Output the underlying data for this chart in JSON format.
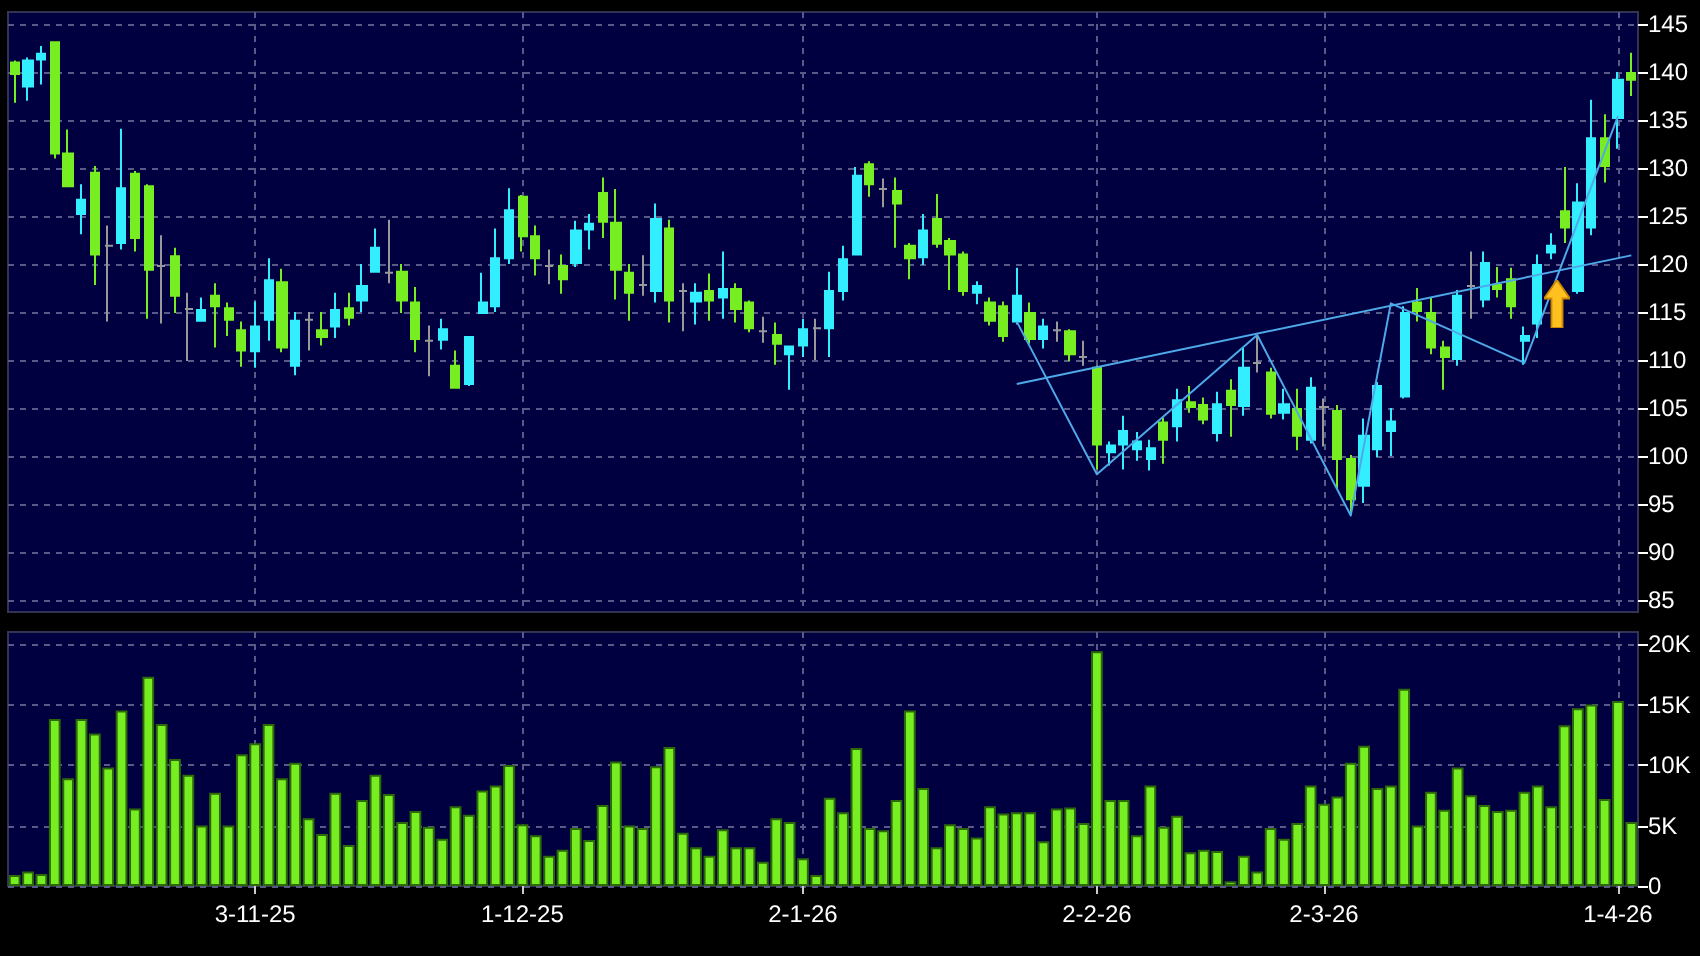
{
  "chart_data": [
    {
      "type": "candlestick",
      "categories": [
        null,
        null,
        null,
        null,
        null,
        null,
        null,
        null,
        null,
        null,
        null,
        null,
        null,
        null,
        null,
        null,
        null,
        null,
        null,
        null,
        null,
        null,
        null,
        null,
        null,
        null,
        null,
        null,
        null,
        null,
        null,
        null,
        null,
        null,
        null,
        null,
        null,
        null,
        null,
        null,
        null,
        null,
        null,
        null,
        null,
        null,
        null,
        null,
        null,
        null,
        null,
        null,
        null,
        null,
        null,
        null,
        null,
        null,
        null,
        null,
        null,
        null,
        null,
        null,
        null,
        null,
        null,
        null,
        null,
        null,
        null,
        null,
        null,
        null,
        null,
        null,
        null,
        null,
        null,
        null,
        null,
        null,
        null,
        null,
        null,
        null,
        null,
        null,
        null,
        null,
        null,
        null,
        null,
        null,
        null,
        null,
        null,
        null,
        null,
        null,
        null,
        null,
        null,
        null,
        null,
        null,
        null,
        null,
        null,
        null,
        null,
        null,
        null,
        null,
        null,
        null,
        null,
        null,
        null,
        null,
        null,
        null
      ],
      "ohlc": [
        [
          141.0,
          141.2,
          136.8,
          139.8
        ],
        [
          138.5,
          141.5,
          137.0,
          141.2
        ],
        [
          141.3,
          142.7,
          138.7,
          141.9
        ],
        [
          143.1,
          143.1,
          131.0,
          131.5
        ],
        [
          131.5,
          134.0,
          128.0,
          128.1
        ],
        [
          125.2,
          128.3,
          123.1,
          126.7
        ],
        [
          129.5,
          130.2,
          117.8,
          121.0
        ],
        [
          121.9,
          124.0,
          114.0,
          121.9
        ],
        [
          122.2,
          134.1,
          121.5,
          127.9
        ],
        [
          129.4,
          129.7,
          121.3,
          122.7
        ],
        [
          128.1,
          128.3,
          114.3,
          119.4
        ],
        [
          119.8,
          123.0,
          113.8,
          119.8
        ],
        [
          120.8,
          121.7,
          114.9,
          116.7
        ],
        [
          115.3,
          117.0,
          109.9,
          115.3
        ],
        [
          114.1,
          116.5,
          114.0,
          115.2
        ],
        [
          116.7,
          118.0,
          111.3,
          115.6
        ],
        [
          115.4,
          116.0,
          112.5,
          114.2
        ],
        [
          113.1,
          114.0,
          109.3,
          111.0
        ],
        [
          110.9,
          116.1,
          109.2,
          113.5
        ],
        [
          114.2,
          120.6,
          112.0,
          118.3
        ],
        [
          118.1,
          119.5,
          110.8,
          111.3
        ],
        [
          109.4,
          115.0,
          108.4,
          114.1
        ],
        [
          114.2,
          115.0,
          111.0,
          114.2
        ],
        [
          113.1,
          115.0,
          111.5,
          112.4
        ],
        [
          113.5,
          117.0,
          112.3,
          115.2
        ],
        [
          115.4,
          117.0,
          113.6,
          114.4
        ],
        [
          116.2,
          120.0,
          115.0,
          117.7
        ],
        [
          119.2,
          123.7,
          119.2,
          121.7
        ],
        [
          119.1,
          124.6,
          118.0,
          119.1
        ],
        [
          119.2,
          120.0,
          114.9,
          116.2
        ],
        [
          116.0,
          117.6,
          110.8,
          112.2
        ],
        [
          112.0,
          113.6,
          108.3,
          112.0
        ],
        [
          112.1,
          114.3,
          111.1,
          113.2
        ],
        [
          109.4,
          111.0,
          107.0,
          107.1
        ],
        [
          107.5,
          112.5,
          107.3,
          112.4
        ],
        [
          114.9,
          119.1,
          114.9,
          116.0
        ],
        [
          115.6,
          123.7,
          115.0,
          120.6
        ],
        [
          120.6,
          127.9,
          120.0,
          125.6
        ],
        [
          127.0,
          127.2,
          121.3,
          122.9
        ],
        [
          122.9,
          124.0,
          118.8,
          120.6
        ],
        [
          119.8,
          121.5,
          117.9,
          119.8
        ],
        [
          119.8,
          121.0,
          116.9,
          118.4
        ],
        [
          120.1,
          124.5,
          119.7,
          123.5
        ],
        [
          123.6,
          125.2,
          121.5,
          124.2
        ],
        [
          127.4,
          129.0,
          122.7,
          124.4
        ],
        [
          124.3,
          127.8,
          116.3,
          119.4
        ],
        [
          119.1,
          120.0,
          114.1,
          117.0
        ],
        [
          117.8,
          120.9,
          116.7,
          117.8
        ],
        [
          117.2,
          126.3,
          116.0,
          124.7
        ],
        [
          123.7,
          124.6,
          113.9,
          116.2
        ],
        [
          117.2,
          118.0,
          113.0,
          117.2
        ],
        [
          116.1,
          118.0,
          113.7,
          117.0
        ],
        [
          117.2,
          119.0,
          114.1,
          116.2
        ],
        [
          116.5,
          121.3,
          114.3,
          117.4
        ],
        [
          117.4,
          118.0,
          113.9,
          115.3
        ],
        [
          116.0,
          116.2,
          112.9,
          113.3
        ],
        [
          113.0,
          114.5,
          111.8,
          113.0
        ],
        [
          112.6,
          113.9,
          109.5,
          111.7
        ],
        [
          110.6,
          111.5,
          106.9,
          111.4
        ],
        [
          111.5,
          114.3,
          110.3,
          113.2
        ],
        [
          113.3,
          114.3,
          110.0,
          113.3
        ],
        [
          113.3,
          119.2,
          110.3,
          117.2
        ],
        [
          117.2,
          121.9,
          116.2,
          120.5
        ],
        [
          121.0,
          130.1,
          120.9,
          129.2
        ],
        [
          130.4,
          130.7,
          127.0,
          128.3
        ],
        [
          127.8,
          128.9,
          125.9,
          127.8
        ],
        [
          127.6,
          129.0,
          121.7,
          126.3
        ],
        [
          121.9,
          122.2,
          118.4,
          120.6
        ],
        [
          120.7,
          125.2,
          119.9,
          123.5
        ],
        [
          124.7,
          127.3,
          121.7,
          122.1
        ],
        [
          122.4,
          122.7,
          117.3,
          121.0
        ],
        [
          121.0,
          121.3,
          116.7,
          117.2
        ],
        [
          117.0,
          118.2,
          115.8,
          117.7
        ],
        [
          116.0,
          116.5,
          113.6,
          114.1
        ],
        [
          115.6,
          116.1,
          111.9,
          112.5
        ],
        [
          114.0,
          119.6,
          113.7,
          116.7
        ],
        [
          114.9,
          116.0,
          111.7,
          112.2
        ],
        [
          112.2,
          114.3,
          111.2,
          113.5
        ],
        [
          113.1,
          114.0,
          111.9,
          113.1
        ],
        [
          113.0,
          113.2,
          109.9,
          110.6
        ],
        [
          110.3,
          112.0,
          109.4,
          110.3
        ],
        [
          109.2,
          109.4,
          98.6,
          101.2
        ],
        [
          100.4,
          101.5,
          99.0,
          101.1
        ],
        [
          101.2,
          104.2,
          98.6,
          102.6
        ],
        [
          100.7,
          102.5,
          99.5,
          101.5
        ],
        [
          99.7,
          101.7,
          98.5,
          100.8
        ],
        [
          103.5,
          104.0,
          99.2,
          101.7
        ],
        [
          103.1,
          107.0,
          101.5,
          105.8
        ],
        [
          105.6,
          107.3,
          104.5,
          105.1
        ],
        [
          105.3,
          106.1,
          103.3,
          103.8
        ],
        [
          102.4,
          106.7,
          101.5,
          105.4
        ],
        [
          106.8,
          108.0,
          102.0,
          105.3
        ],
        [
          105.2,
          111.3,
          104.2,
          109.2
        ],
        [
          109.7,
          112.6,
          108.7,
          109.7
        ],
        [
          108.7,
          109.2,
          103.9,
          104.4
        ],
        [
          104.5,
          107.0,
          103.8,
          105.4
        ],
        [
          104.9,
          107.0,
          100.6,
          102.1
        ],
        [
          101.7,
          108.2,
          101.3,
          107.1
        ],
        [
          105.1,
          106.0,
          101.0,
          105.1
        ],
        [
          104.7,
          105.3,
          96.5,
          99.7
        ],
        [
          99.7,
          100.1,
          93.9,
          95.5
        ],
        [
          96.9,
          103.9,
          95.1,
          102.1
        ],
        [
          100.7,
          107.7,
          99.9,
          107.3
        ],
        [
          102.6,
          105.0,
          100.0,
          103.6
        ],
        [
          106.2,
          115.6,
          106.0,
          114.9
        ],
        [
          116.0,
          117.5,
          114.0,
          115.1
        ],
        [
          114.9,
          116.5,
          110.6,
          111.3
        ],
        [
          111.3,
          112.0,
          106.9,
          110.3
        ],
        [
          110.1,
          117.3,
          109.4,
          116.7
        ],
        [
          117.7,
          121.3,
          114.3,
          117.7
        ],
        [
          116.3,
          121.3,
          115.5,
          120.1
        ],
        [
          117.8,
          119.7,
          116.5,
          117.4
        ],
        [
          118.4,
          119.6,
          114.3,
          115.6
        ],
        [
          112.0,
          113.5,
          109.5,
          112.5
        ],
        [
          113.8,
          121.0,
          112.3,
          119.9
        ],
        [
          121.2,
          123.2,
          120.5,
          121.9
        ],
        [
          125.5,
          130.1,
          122.2,
          123.8
        ],
        [
          117.2,
          128.4,
          116.9,
          126.4
        ],
        [
          123.8,
          137.1,
          123.0,
          133.1
        ],
        [
          133.1,
          135.6,
          128.5,
          130.2
        ],
        [
          135.2,
          140.0,
          132.0,
          139.2
        ],
        [
          139.9,
          142.0,
          137.5,
          139.2
        ]
      ],
      "colors": [
        "#77ee22",
        "#33eeff",
        "#33eeff",
        "#77ee22",
        "#77ee22",
        "#33eeff",
        "#77ee22",
        "#999999",
        "#33eeff",
        "#77ee22",
        "#77ee22",
        "#999999",
        "#77ee22",
        "#999999",
        "#33eeff",
        "#77ee22",
        "#77ee22",
        "#77ee22",
        "#33eeff",
        "#33eeff",
        "#77ee22",
        "#33eeff",
        "#999999",
        "#77ee22",
        "#33eeff",
        "#77ee22",
        "#33eeff",
        "#33eeff",
        "#999999",
        "#77ee22",
        "#77ee22",
        "#999999",
        "#33eeff",
        "#77ee22",
        "#33eeff",
        "#33eeff",
        "#33eeff",
        "#33eeff",
        "#77ee22",
        "#77ee22",
        "#999999",
        "#77ee22",
        "#33eeff",
        "#33eeff",
        "#77ee22",
        "#77ee22",
        "#77ee22",
        "#999999",
        "#33eeff",
        "#77ee22",
        "#999999",
        "#33eeff",
        "#77ee22",
        "#33eeff",
        "#77ee22",
        "#77ee22",
        "#999999",
        "#77ee22",
        "#33eeff",
        "#33eeff",
        "#999999",
        "#33eeff",
        "#33eeff",
        "#33eeff",
        "#77ee22",
        "#999999",
        "#77ee22",
        "#77ee22",
        "#33eeff",
        "#77ee22",
        "#77ee22",
        "#77ee22",
        "#33eeff",
        "#77ee22",
        "#77ee22",
        "#33eeff",
        "#77ee22",
        "#33eeff",
        "#999999",
        "#77ee22",
        "#999999",
        "#77ee22",
        "#33eeff",
        "#33eeff",
        "#33eeff",
        "#33eeff",
        "#77ee22",
        "#33eeff",
        "#77ee22",
        "#77ee22",
        "#33eeff",
        "#77ee22",
        "#33eeff",
        "#999999",
        "#77ee22",
        "#33eeff",
        "#77ee22",
        "#33eeff",
        "#999999",
        "#77ee22",
        "#77ee22",
        "#33eeff",
        "#33eeff",
        "#33eeff",
        "#33eeff",
        "#77ee22",
        "#77ee22",
        "#77ee22",
        "#33eeff",
        "#999999",
        "#33eeff",
        "#77ee22",
        "#77ee22",
        "#33eeff",
        "#33eeff",
        "#33eeff",
        "#77ee22",
        "#33eeff",
        "#33eeff",
        "#77ee22",
        "#33eeff",
        "#77ee22"
      ],
      "series": [
        {
          "type": "line",
          "color": "#4fa8e8",
          "values": [
            null,
            null,
            null,
            null,
            null,
            null,
            null,
            null,
            null,
            null,
            null,
            null,
            null,
            null,
            null,
            null,
            null,
            null,
            null,
            null,
            null,
            null,
            null,
            null,
            null,
            null,
            null,
            null,
            null,
            null,
            null,
            null,
            null,
            null,
            null,
            null,
            null,
            null,
            null,
            null,
            null,
            null,
            null,
            null,
            null,
            null,
            null,
            null,
            null,
            null,
            null,
            null,
            null,
            null,
            null,
            null,
            null,
            null,
            null,
            null,
            null,
            null,
            null,
            null,
            null,
            null,
            null,
            null,
            null,
            null,
            null,
            null,
            null,
            null,
            null,
            107.5,
            null,
            null,
            null,
            null,
            null,
            null,
            null,
            null,
            null,
            null,
            null,
            null,
            null,
            null,
            null,
            null,
            null,
            null,
            null,
            null,
            null,
            null,
            null,
            null,
            null,
            null,
            null,
            null,
            null,
            null,
            null,
            null,
            null,
            null,
            null,
            null,
            null,
            null,
            null,
            null,
            null,
            null,
            null,
            null,
            null,
            120.9
          ]
        },
        {
          "type": "line",
          "color": "#4fa8e8",
          "values": [
            null,
            null,
            null,
            null,
            null,
            null,
            null,
            null,
            null,
            null,
            null,
            null,
            null,
            null,
            null,
            null,
            null,
            null,
            null,
            null,
            null,
            null,
            null,
            null,
            null,
            null,
            null,
            null,
            null,
            null,
            null,
            null,
            null,
            null,
            null,
            null,
            null,
            null,
            null,
            null,
            null,
            null,
            null,
            null,
            null,
            null,
            null,
            null,
            null,
            null,
            null,
            null,
            null,
            null,
            null,
            null,
            null,
            null,
            null,
            null,
            null,
            null,
            null,
            null,
            null,
            null,
            null,
            null,
            null,
            null,
            null,
            null,
            null,
            null,
            null,
            114.0,
            null,
            null,
            null,
            null,
            null,
            98.1,
            null,
            null,
            null,
            null,
            null,
            null,
            null,
            null,
            null,
            null,
            null,
            112.6,
            null,
            null,
            null,
            null,
            null,
            null,
            93.8,
            null,
            null,
            115.9,
            null,
            null,
            null,
            null,
            null,
            null,
            null,
            null,
            null,
            109.7,
            null,
            null,
            null,
            null,
            null,
            null,
            135.4,
            null
          ]
        }
      ],
      "ylim": [
        83.75,
        146.25
      ],
      "yticks": [
        85,
        90,
        95,
        100,
        105,
        110,
        115,
        120,
        125,
        130,
        135,
        140,
        145
      ],
      "grid": true,
      "tick_labels": "y"
    },
    {
      "type": "bar",
      "categories": [
        null,
        null,
        null,
        null,
        null,
        null,
        null,
        null,
        null,
        null,
        null,
        null,
        null,
        null,
        null,
        null,
        null,
        null,
        "3-11-25",
        null,
        null,
        null,
        null,
        null,
        null,
        null,
        null,
        null,
        null,
        null,
        null,
        null,
        null,
        null,
        null,
        null,
        null,
        null,
        "1-12-25",
        null,
        null,
        null,
        null,
        null,
        null,
        null,
        null,
        null,
        null,
        null,
        null,
        null,
        null,
        null,
        null,
        null,
        null,
        null,
        null,
        "2-1-26",
        null,
        null,
        null,
        null,
        null,
        null,
        null,
        null,
        null,
        null,
        null,
        null,
        null,
        null,
        null,
        null,
        null,
        null,
        null,
        null,
        null,
        "2-2-26",
        null,
        null,
        null,
        null,
        null,
        null,
        null,
        null,
        null,
        null,
        null,
        null,
        null,
        null,
        null,
        null,
        "2-3-26",
        null,
        null,
        null,
        null,
        null,
        null,
        null,
        null,
        null,
        null,
        null,
        null,
        null,
        null,
        null,
        null,
        null,
        null,
        null,
        null,
        null,
        "1-4-26",
        null
      ],
      "values": [
        900,
        1200,
        1000,
        13800,
        8900,
        13800,
        12600,
        9800,
        14500,
        6400,
        17300,
        13400,
        10500,
        9200,
        5000,
        7700,
        5000,
        10900,
        11800,
        13400,
        8900,
        10200,
        5600,
        4300,
        7700,
        3400,
        7100,
        9200,
        7600,
        5300,
        6200,
        4900,
        3900,
        6600,
        5900,
        7900,
        8300,
        10000,
        5100,
        4200,
        2500,
        3000,
        4800,
        3800,
        6700,
        10300,
        5000,
        4800,
        9900,
        11500,
        4400,
        3200,
        2500,
        4700,
        3200,
        3200,
        2000,
        5600,
        5300,
        2300,
        900,
        7300,
        6100,
        11400,
        4800,
        4600,
        7100,
        14500,
        8100,
        3200,
        5100,
        4800,
        4000,
        6600,
        6000,
        6100,
        6100,
        3700,
        6400,
        6500,
        5200,
        19400,
        7100,
        7100,
        4200,
        8300,
        4900,
        5800,
        2800,
        3000,
        2900,
        400,
        2500,
        1200,
        4800,
        3900,
        5200,
        8300,
        6800,
        7400,
        10200,
        11600,
        8100,
        8300,
        16300,
        5000,
        7800,
        6300,
        9800,
        7500,
        6700,
        6200,
        6300,
        7800,
        8300,
        6600,
        13300,
        14700,
        15000,
        7200,
        15300,
        5300
      ],
      "color": "#77ee22",
      "ylim": [
        0,
        21000
      ],
      "yticks": [
        0,
        {
          "value": 5000,
          "label": "5K"
        },
        {
          "value": 10000,
          "label": "10K"
        },
        {
          "value": 15000,
          "label": "15K"
        },
        {
          "value": 20000,
          "label": "20K"
        }
      ],
      "grid": true
    }
  ]
}
